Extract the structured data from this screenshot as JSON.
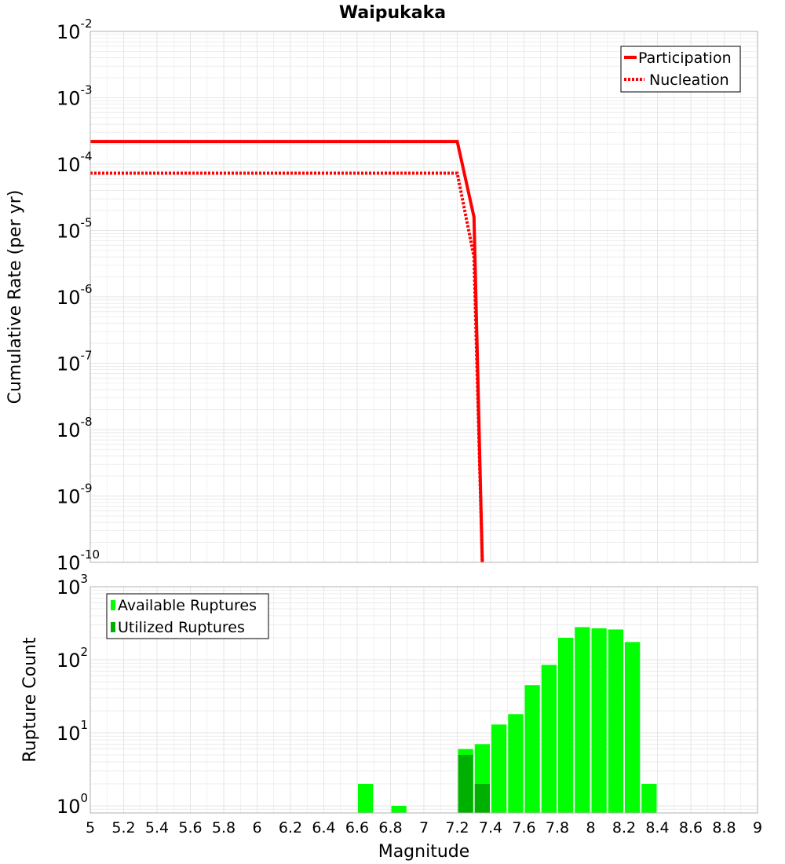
{
  "title": "Waipukaka",
  "colors": {
    "participation": "#ff0000",
    "nucleation": "#ff0000",
    "available": "#00ff00",
    "utilized": "#00b000",
    "grid": "#e6e6e6",
    "frame": "#b0b0b0"
  },
  "chart_data": [
    {
      "type": "line",
      "title": "Waipukaka",
      "xlabel": "",
      "ylabel": "Cumulative Rate (per yr)",
      "xlim": [
        5,
        9
      ],
      "ylim_exp": [
        -10,
        -2
      ],
      "yscale": "log",
      "ytick_labels": [
        {
          "exp": -10,
          "label": "10",
          "sup": "-10"
        },
        {
          "exp": -9,
          "label": "10",
          "sup": "-9"
        },
        {
          "exp": -8,
          "label": "10",
          "sup": "-8"
        },
        {
          "exp": -7,
          "label": "10",
          "sup": "-7"
        },
        {
          "exp": -6,
          "label": "10",
          "sup": "-6"
        },
        {
          "exp": -5,
          "label": "10",
          "sup": "-5"
        },
        {
          "exp": -4,
          "label": "10",
          "sup": "-4"
        },
        {
          "exp": -3,
          "label": "10",
          "sup": "-3"
        },
        {
          "exp": -2,
          "label": "10",
          "sup": "-2"
        }
      ],
      "legend": {
        "position": "top-right"
      },
      "series": [
        {
          "name": "Participation",
          "style": "solid",
          "x": [
            5.0,
            7.2,
            7.3,
            7.35
          ],
          "y": [
            0.00022,
            0.00022,
            1.6e-05,
            1e-10
          ]
        },
        {
          "name": "Nucleation",
          "style": "dotted",
          "x": [
            5.0,
            7.2,
            7.3,
            7.35
          ],
          "y": [
            7.3e-05,
            7.3e-05,
            4e-06,
            1e-10
          ]
        }
      ]
    },
    {
      "type": "bar",
      "title": "",
      "xlabel": "Magnitude",
      "ylabel": "Rupture Count",
      "xlim": [
        5,
        9
      ],
      "ylim": [
        0.8,
        1000
      ],
      "yscale": "log",
      "bin_width": 0.1,
      "ytick_labels": [
        {
          "exp": 0,
          "label": "10",
          "sup": "0"
        },
        {
          "exp": 1,
          "label": "10",
          "sup": "1"
        },
        {
          "exp": 2,
          "label": "10",
          "sup": "2"
        },
        {
          "exp": 3,
          "label": "10",
          "sup": "3"
        }
      ],
      "xtick_labels": [
        "5",
        "5.2",
        "5.4",
        "5.6",
        "5.8",
        "6",
        "6.2",
        "6.4",
        "6.6",
        "6.8",
        "7",
        "7.2",
        "7.4",
        "7.6",
        "7.8",
        "8",
        "8.2",
        "8.4",
        "8.6",
        "8.8",
        "9"
      ],
      "legend": {
        "position": "top-left"
      },
      "series": [
        {
          "name": "Available Ruptures",
          "x": [
            6.65,
            6.85,
            7.25,
            7.35,
            7.45,
            7.55,
            7.65,
            7.75,
            7.85,
            7.95,
            8.05,
            8.15,
            8.25,
            8.35
          ],
          "values": [
            2,
            1,
            6,
            7,
            13,
            18,
            45,
            85,
            200,
            280,
            270,
            260,
            175,
            2
          ]
        },
        {
          "name": "Utilized Ruptures",
          "x": [
            7.25,
            7.35
          ],
          "values": [
            5,
            2
          ]
        }
      ]
    }
  ]
}
